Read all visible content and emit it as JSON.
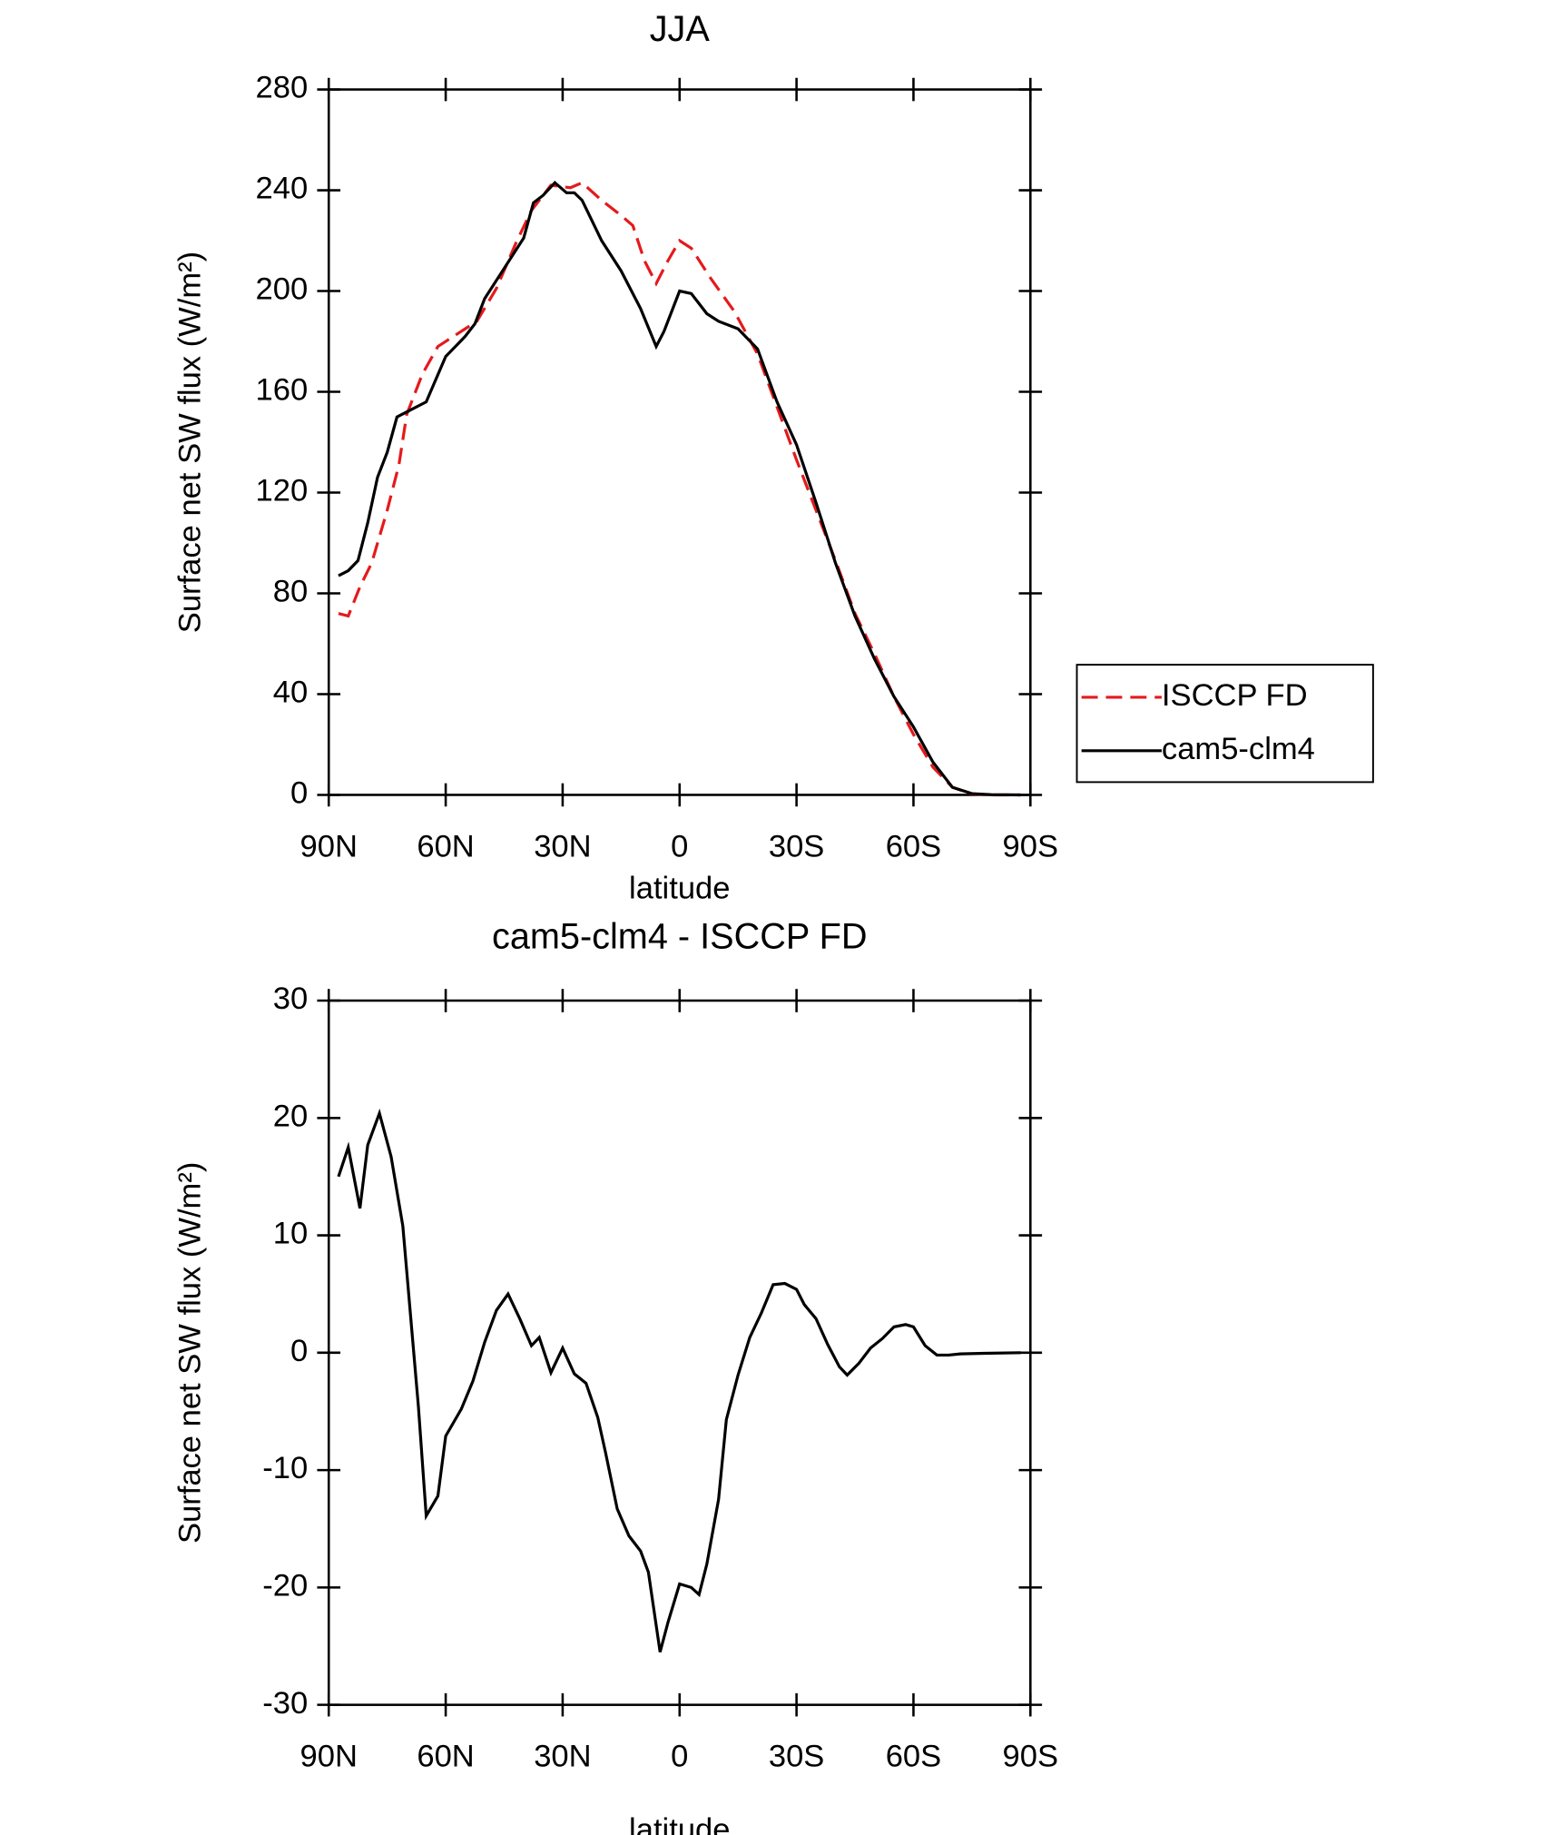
{
  "chart_data": [
    {
      "type": "line",
      "title": "JJA",
      "xlabel": "latitude",
      "ylabel": "Surface net SW flux (W/m²)",
      "xlim": [
        90,
        -90
      ],
      "xticks": [
        {
          "value": 90,
          "label": "90N"
        },
        {
          "value": 60,
          "label": "60N"
        },
        {
          "value": 30,
          "label": "30N"
        },
        0,
        {
          "value": -30,
          "label": "30S"
        },
        {
          "value": -60,
          "label": "60S"
        },
        {
          "value": -90,
          "label": "90S"
        }
      ],
      "ylim": [
        0,
        280
      ],
      "yticks": [
        0,
        40,
        80,
        120,
        160,
        200,
        240,
        280
      ],
      "legend": "right",
      "series": [
        {
          "name": "ISCCP FD",
          "color": "#e41a1c",
          "dashed": true,
          "x": [
            87.5,
            85,
            82,
            79,
            75,
            72,
            70,
            66,
            62,
            56,
            52,
            47,
            42,
            38,
            33,
            28,
            25,
            20,
            15,
            12,
            9,
            6,
            3,
            0,
            -3,
            -8,
            -14,
            -20,
            -25,
            -30,
            -35,
            -40,
            -45,
            -50,
            -55,
            -60,
            -65,
            -70,
            -75,
            -80,
            -87.5
          ],
          "values": [
            72,
            71,
            82.6,
            92,
            113,
            131,
            151,
            167,
            178,
            184,
            188,
            201,
            219,
            232,
            242,
            241,
            243,
            236,
            230,
            226,
            212,
            203,
            212,
            220,
            217,
            205,
            192,
            175,
            154,
            133,
            113,
            93,
            72,
            56,
            39,
            24,
            11,
            3,
            0.4,
            0,
            0
          ]
        },
        {
          "name": "cam5-clm4",
          "color": "#000000",
          "dashed": false,
          "x": [
            87.5,
            85,
            82.5,
            80,
            77.5,
            75,
            72.5,
            70,
            65,
            60,
            55,
            52.5,
            50,
            45,
            40,
            37.5,
            35,
            32,
            29,
            27,
            25,
            20,
            15,
            10,
            6,
            4,
            0,
            -3,
            -7,
            -10,
            -15,
            -20,
            -25,
            -30,
            -35,
            -40,
            -45,
            -50,
            -55,
            -60,
            -65,
            -70,
            -75,
            -80,
            -87.5
          ],
          "values": [
            87,
            89,
            93,
            108,
            126,
            136,
            150,
            152,
            156,
            174,
            182,
            187,
            197,
            209,
            221,
            235,
            238,
            243,
            239,
            239,
            236,
            220,
            208,
            193,
            178,
            184,
            200,
            199,
            191,
            188,
            185,
            177,
            156,
            139,
            116,
            92,
            71,
            54,
            39,
            27,
            13,
            3,
            0.5,
            0.1,
            0
          ]
        }
      ]
    },
    {
      "type": "line",
      "title": "cam5-clm4 - ISCCP FD",
      "xlabel": "latitude",
      "ylabel": "Surface net SW flux (W/m²)",
      "xlim": [
        90,
        -90
      ],
      "xticks": [
        {
          "value": 90,
          "label": "90N"
        },
        {
          "value": 60,
          "label": "60N"
        },
        {
          "value": 30,
          "label": "30N"
        },
        0,
        {
          "value": -30,
          "label": "30S"
        },
        {
          "value": -60,
          "label": "60S"
        },
        {
          "value": -90,
          "label": "90S"
        }
      ],
      "ylim": [
        -30,
        30
      ],
      "yticks": [
        -30,
        -20,
        -10,
        0,
        10,
        20,
        30
      ],
      "series": [
        {
          "color": "#000000",
          "dashed": false,
          "x": [
            87.5,
            85,
            82,
            80,
            77,
            74,
            71,
            67,
            65,
            62,
            60,
            56,
            53,
            50,
            47,
            44,
            41,
            38,
            36,
            33,
            30,
            27,
            24,
            21,
            19,
            16,
            13,
            10,
            8,
            5,
            3,
            0,
            -3,
            -5,
            -7,
            -10,
            -12,
            -15,
            -18,
            -21,
            -24,
            -27,
            -30,
            -32,
            -35,
            -38,
            -41,
            -43,
            -46,
            -49,
            -52,
            -55,
            -58,
            -60,
            -63,
            -66,
            -69,
            -72,
            -78,
            -87.5
          ],
          "values": [
            15,
            17.5,
            12.3,
            17.7,
            20.4,
            16.7,
            10.8,
            -4.6,
            -13.9,
            -12.2,
            -7.1,
            -4.8,
            -2.4,
            0.9,
            3.6,
            5.0,
            2.9,
            0.6,
            1.3,
            -1.7,
            0.4,
            -1.8,
            -2.6,
            -5.5,
            -8.5,
            -13.3,
            -15.6,
            -16.9,
            -18.7,
            -25.5,
            -23.0,
            -19.7,
            -20.0,
            -20.6,
            -18.0,
            -12.5,
            -5.7,
            -1.9,
            1.3,
            3.4,
            5.8,
            5.9,
            5.4,
            4.1,
            2.9,
            0.7,
            -1.2,
            -1.9,
            -0.9,
            0.4,
            1.2,
            2.2,
            2.4,
            2.2,
            0.6,
            -0.2,
            -0.2,
            -0.1,
            -0.05,
            0
          ]
        }
      ]
    }
  ]
}
